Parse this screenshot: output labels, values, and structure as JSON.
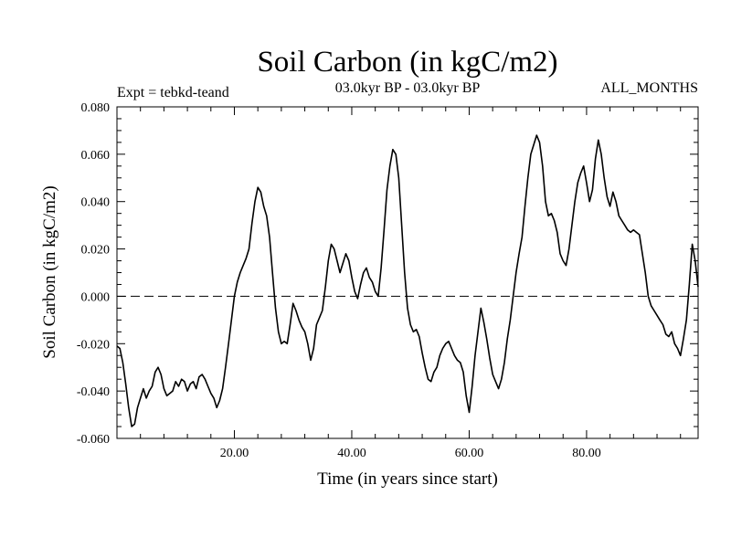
{
  "chart_data": {
    "type": "line",
    "title": "Soil Carbon (in kgC/m2)",
    "subtitle_left": "Expt = tebkd-teand",
    "subtitle_center": "03.0kyr BP - 03.0kyr BP",
    "subtitle_right": "ALL_MONTHS",
    "xlabel": "Time (in years since start)",
    "ylabel": "Soil Carbon (in kgC/m2)",
    "xlim": [
      0,
      99
    ],
    "ylim": [
      -0.06,
      0.08
    ],
    "x_ticks": [
      20,
      40,
      60,
      80
    ],
    "x_tick_labels": [
      "20.00",
      "40.00",
      "60.00",
      "80.00"
    ],
    "y_ticks": [
      -0.06,
      -0.04,
      -0.02,
      0.0,
      0.02,
      0.04,
      0.06,
      0.08
    ],
    "y_tick_labels": [
      "-0.060",
      "-0.040",
      "-0.020",
      "0.000",
      "0.020",
      "0.040",
      "0.060",
      "0.080"
    ],
    "reference_line": 0.0,
    "series": [
      {
        "name": "Soil Carbon",
        "x": [
          0.0,
          0.5,
          1.0,
          1.5,
          2.0,
          2.5,
          3.0,
          3.5,
          4.0,
          4.5,
          5.0,
          5.5,
          6.0,
          6.5,
          7.0,
          7.5,
          8.0,
          8.5,
          9.0,
          9.5,
          10.0,
          10.5,
          11.0,
          11.5,
          12.0,
          12.5,
          13.0,
          13.5,
          14.0,
          14.5,
          15.0,
          15.5,
          16.0,
          16.5,
          17.0,
          17.5,
          18.0,
          18.5,
          19.0,
          19.5,
          20.0,
          20.5,
          21.0,
          21.5,
          22.0,
          22.5,
          23.0,
          23.5,
          24.0,
          24.5,
          25.0,
          25.5,
          26.0,
          26.5,
          27.0,
          27.5,
          28.0,
          28.5,
          29.0,
          29.5,
          30.0,
          30.5,
          31.0,
          31.5,
          32.0,
          32.5,
          33.0,
          33.5,
          34.0,
          34.5,
          35.0,
          35.5,
          36.0,
          36.5,
          37.0,
          37.5,
          38.0,
          38.5,
          39.0,
          39.5,
          40.0,
          40.5,
          41.0,
          41.5,
          42.0,
          42.5,
          43.0,
          43.5,
          44.0,
          44.5,
          45.0,
          45.5,
          46.0,
          46.5,
          47.0,
          47.5,
          48.0,
          48.5,
          49.0,
          49.5,
          50.0,
          50.5,
          51.0,
          51.5,
          52.0,
          52.5,
          53.0,
          53.5,
          54.0,
          54.5,
          55.0,
          55.5,
          56.0,
          56.5,
          57.0,
          57.5,
          58.0,
          58.5,
          59.0,
          59.5,
          60.0,
          60.5,
          61.0,
          61.5,
          62.0,
          62.5,
          63.0,
          63.5,
          64.0,
          64.5,
          65.0,
          65.5,
          66.0,
          66.5,
          67.0,
          67.5,
          68.0,
          68.5,
          69.0,
          69.5,
          70.0,
          70.5,
          71.0,
          71.5,
          72.0,
          72.5,
          73.0,
          73.5,
          74.0,
          74.5,
          75.0,
          75.5,
          76.0,
          76.5,
          77.0,
          77.5,
          78.0,
          78.5,
          79.0,
          79.5,
          80.0,
          80.5,
          81.0,
          81.5,
          82.0,
          82.5,
          83.0,
          83.5,
          84.0,
          84.5,
          85.0,
          85.5,
          86.0,
          86.5,
          87.0,
          87.5,
          88.0,
          88.5,
          89.0,
          89.5,
          90.0,
          90.5,
          91.0,
          91.5,
          92.0,
          92.5,
          93.0,
          93.5,
          94.0,
          94.5,
          95.0,
          95.5,
          96.0,
          96.5,
          97.0,
          97.5,
          98.0,
          98.5,
          99.0
        ],
        "values": [
          -0.021,
          -0.022,
          -0.028,
          -0.037,
          -0.047,
          -0.055,
          -0.054,
          -0.047,
          -0.043,
          -0.039,
          -0.043,
          -0.04,
          -0.038,
          -0.032,
          -0.03,
          -0.033,
          -0.039,
          -0.042,
          -0.041,
          -0.04,
          -0.036,
          -0.038,
          -0.035,
          -0.036,
          -0.04,
          -0.037,
          -0.036,
          -0.039,
          -0.034,
          -0.033,
          -0.035,
          -0.038,
          -0.041,
          -0.043,
          -0.047,
          -0.044,
          -0.039,
          -0.03,
          -0.02,
          -0.01,
          0.0,
          0.006,
          0.01,
          0.013,
          0.016,
          0.02,
          0.031,
          0.04,
          0.046,
          0.044,
          0.038,
          0.034,
          0.025,
          0.01,
          -0.005,
          -0.015,
          -0.02,
          -0.019,
          -0.02,
          -0.012,
          -0.003,
          -0.006,
          -0.01,
          -0.013,
          -0.015,
          -0.02,
          -0.027,
          -0.022,
          -0.012,
          -0.009,
          -0.006,
          0.004,
          0.015,
          0.022,
          0.02,
          0.015,
          0.01,
          0.014,
          0.018,
          0.015,
          0.008,
          0.002,
          -0.001,
          0.005,
          0.01,
          0.012,
          0.008,
          0.006,
          0.002,
          0.0,
          0.012,
          0.028,
          0.045,
          0.055,
          0.062,
          0.06,
          0.05,
          0.03,
          0.01,
          -0.005,
          -0.012,
          -0.015,
          -0.014,
          -0.017,
          -0.024,
          -0.03,
          -0.035,
          -0.036,
          -0.032,
          -0.03,
          -0.025,
          -0.022,
          -0.02,
          -0.019,
          -0.022,
          -0.025,
          -0.027,
          -0.028,
          -0.032,
          -0.042,
          -0.049,
          -0.038,
          -0.025,
          -0.015,
          -0.005,
          -0.011,
          -0.018,
          -0.026,
          -0.033,
          -0.036,
          -0.039,
          -0.035,
          -0.028,
          -0.018,
          -0.01,
          0.0,
          0.01,
          0.018,
          0.025,
          0.038,
          0.05,
          0.06,
          0.064,
          0.068,
          0.065,
          0.055,
          0.04,
          0.034,
          0.035,
          0.032,
          0.027,
          0.018,
          0.015,
          0.013,
          0.02,
          0.03,
          0.04,
          0.048,
          0.052,
          0.055,
          0.048,
          0.04,
          0.045,
          0.058,
          0.066,
          0.06,
          0.05,
          0.042,
          0.038,
          0.044,
          0.04,
          0.034,
          0.032,
          0.03,
          0.028,
          0.027,
          0.028,
          0.027,
          0.026,
          0.018,
          0.01,
          0.0,
          -0.004,
          -0.006,
          -0.008,
          -0.01,
          -0.012,
          -0.016,
          -0.017,
          -0.015,
          -0.02,
          -0.022,
          -0.025,
          -0.018,
          -0.01,
          0.005,
          0.022,
          0.015,
          0.004
        ]
      }
    ]
  }
}
